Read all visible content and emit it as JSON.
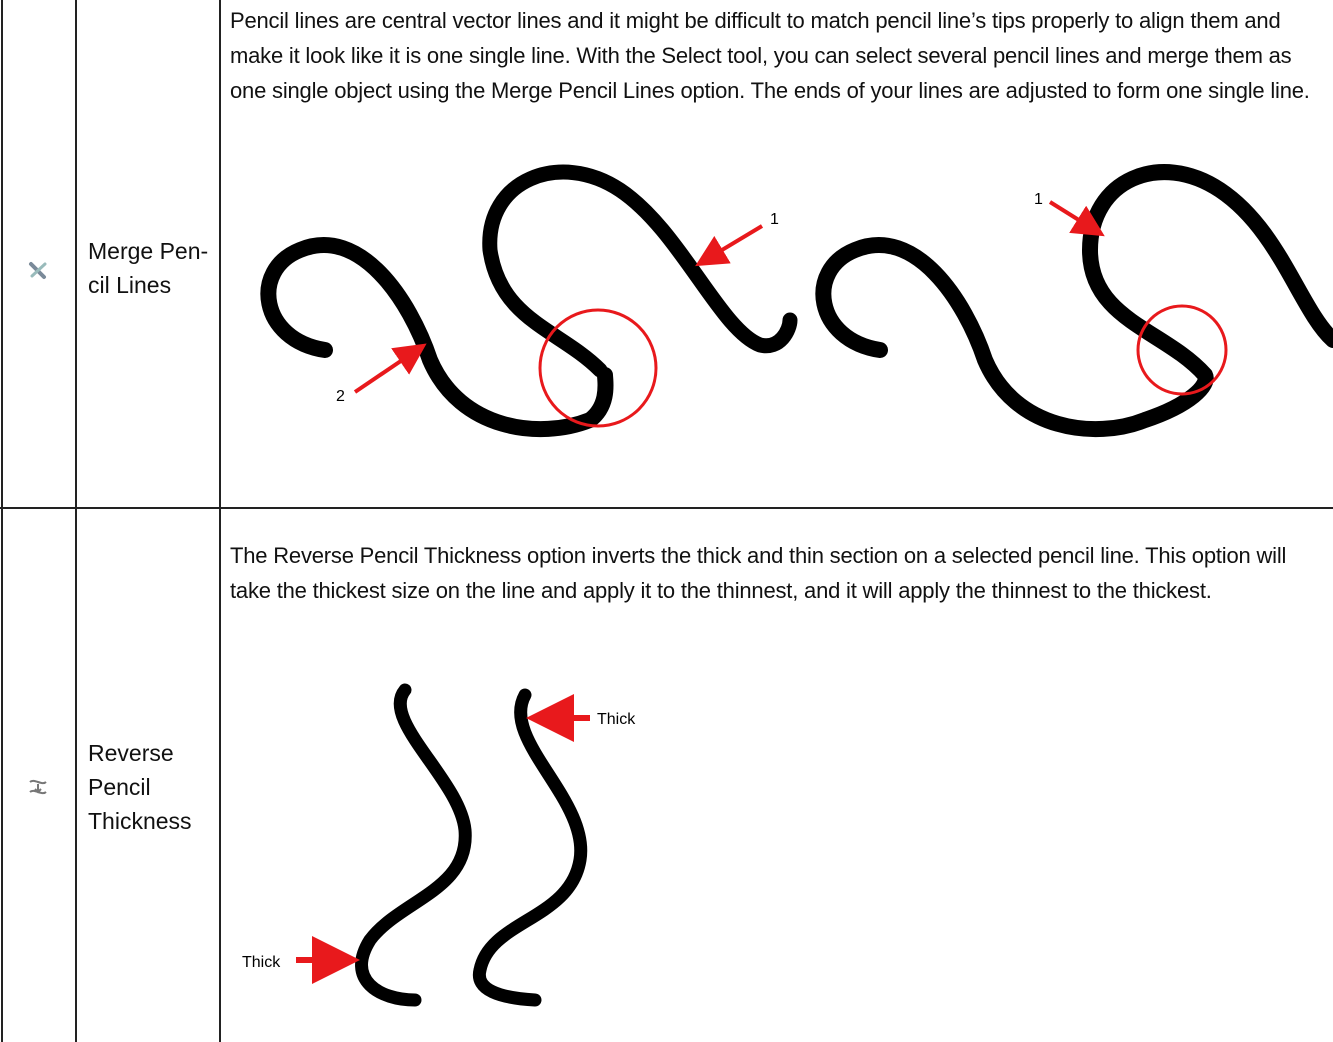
{
  "rows": [
    {
      "name": "Merge Pen­cil Lines",
      "description": "Pencil lines are central vector lines and it might be difficult to match pencil line’s tips properly to align them and make it look like it is one single line. With the Select tool, you can select several pencil lines and merge them as one single object using the Merge Pencil Lines option. The ends of your lines are adjusted to form one single line.",
      "annotations": [
        "1",
        "2",
        "1"
      ]
    },
    {
      "name": "Reverse Pencil Thickness",
      "description": "The Reverse Pencil Thickness option inverts the thick and thin section on a selected pencil line. This option will take the thickest size on the line and apply it to the thinnest, and it will apply the thinnest to the thickest.",
      "annotations": [
        "Thick",
        "Thick"
      ]
    }
  ]
}
